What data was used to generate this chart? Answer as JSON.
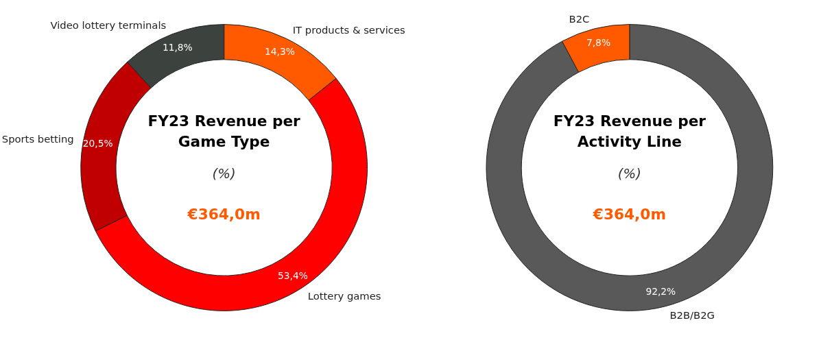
{
  "chart_data": [
    {
      "type": "donut",
      "title": "FY23 Revenue per Game Type",
      "subtitle": "(%)",
      "annotations": [
        "€364,0m"
      ],
      "categories": [
        "IT products & services",
        "Lottery games",
        "Sports betting",
        "Video lottery terminals"
      ],
      "values": [
        14.3,
        53.4,
        20.5,
        11.8
      ],
      "colors": [
        "#ff5a00",
        "#ff0000",
        "#c00000",
        "#3c423d"
      ],
      "value_labels": [
        "14,3%",
        "53,4%",
        "20,5%",
        "11,8%"
      ],
      "legend": false
    },
    {
      "type": "donut",
      "title": "FY23 Revenue per Activity Line",
      "subtitle": "(%)",
      "annotations": [
        "€364,0m"
      ],
      "categories": [
        "B2B/B2G",
        "B2C"
      ],
      "values": [
        92.2,
        7.8
      ],
      "colors": [
        "#595959",
        "#ff5a00"
      ],
      "value_labels": [
        "92,2%",
        "7,8%"
      ],
      "legend": false
    }
  ]
}
